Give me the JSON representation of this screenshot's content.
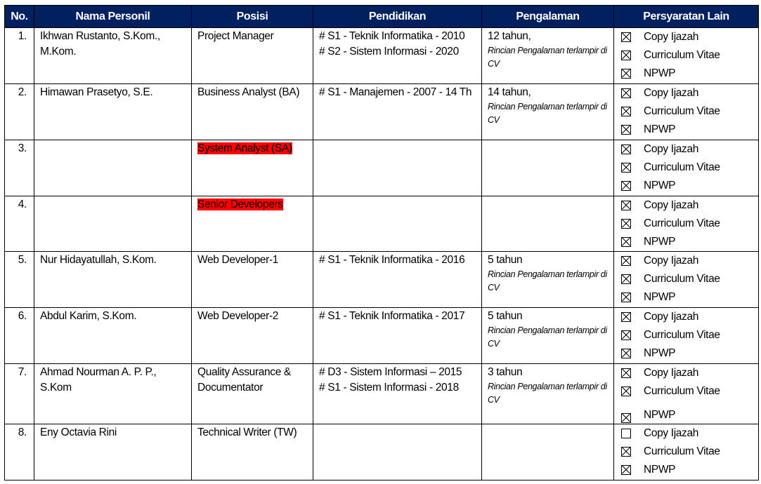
{
  "headers": [
    "No.",
    "Nama Personil",
    "Posisi",
    "Pendidikan",
    "Pengalaman",
    "Persyaratan Lain"
  ],
  "highlight_color": "#ff0000",
  "header_color": "#002060",
  "rows": [
    {
      "no": "1.",
      "name": "Ikhwan Rustanto, S.Kom., M.Kom.",
      "position": "Project Manager",
      "highlight": false,
      "education": [
        "# S1 - Teknik Informatika - 2010",
        "# S2 - Sistem Informasi - 2020"
      ],
      "experience": "12 tahun,",
      "experience_note": "Rincian Pengalaman terlampir di CV",
      "requirements": [
        {
          "label": "Copy Ijazah",
          "checked": true
        },
        {
          "label": "Curriculum Vitae",
          "checked": true
        },
        {
          "label": "NPWP",
          "checked": true
        }
      ]
    },
    {
      "no": "2.",
      "name": "Himawan Prasetyo, S.E.",
      "position": "Business Analyst (BA)",
      "highlight": false,
      "education": [
        "# S1 - Manajemen - 2007 - 14 Th"
      ],
      "experience": "14 tahun,",
      "experience_note": "Rincian Pengalaman terlampir di CV",
      "requirements": [
        {
          "label": "Copy Ijazah",
          "checked": true
        },
        {
          "label": "Curriculum Vitae",
          "checked": true
        },
        {
          "label": "NPWP",
          "checked": true
        }
      ]
    },
    {
      "no": "3.",
      "name": "",
      "position": "System Analyst (SA)",
      "highlight": true,
      "education": [],
      "experience": "",
      "experience_note": "",
      "requirements": [
        {
          "label": "Copy Ijazah",
          "checked": true
        },
        {
          "label": "Curriculum Vitae",
          "checked": true
        },
        {
          "label": "NPWP",
          "checked": true
        }
      ]
    },
    {
      "no": "4.",
      "name": "",
      "position": "Senior Developers",
      "highlight": true,
      "education": [],
      "experience": "",
      "experience_note": "",
      "requirements": [
        {
          "label": "Copy Ijazah",
          "checked": true
        },
        {
          "label": "Curriculum Vitae",
          "checked": true
        },
        {
          "label": "NPWP",
          "checked": true
        }
      ]
    },
    {
      "no": "5.",
      "name": "Nur Hidayatullah, S.Kom.",
      "position": "Web Developer-1",
      "highlight": false,
      "education": [
        "# S1 - Teknik Informatika - 2016"
      ],
      "experience": "5 tahun",
      "experience_note": "Rincian Pengalaman terlampir di CV",
      "requirements": [
        {
          "label": "Copy Ijazah",
          "checked": true
        },
        {
          "label": "Curriculum Vitae",
          "checked": true
        },
        {
          "label": "NPWP",
          "checked": true
        }
      ]
    },
    {
      "no": "6.",
      "name": "Abdul Karim, S.Kom.",
      "position": "Web Developer-2",
      "highlight": false,
      "education": [
        "# S1 - Teknik Informatika - 2017"
      ],
      "experience": "5 tahun",
      "experience_note": "Rincian Pengalaman terlampir di CV",
      "requirements": [
        {
          "label": "Copy Ijazah",
          "checked": true
        },
        {
          "label": "Curriculum Vitae",
          "checked": true
        },
        {
          "label": "NPWP",
          "checked": true
        }
      ]
    },
    {
      "no": "7.",
      "name": "Ahmad Nourman A. P. P., S.Kom",
      "position": "Quality Assurance & Documentator",
      "highlight": false,
      "education": [
        "# D3 - Sistem Informasi – 2015",
        "# S1 - Sistem Informasi - 2018"
      ],
      "experience": "3 tahun",
      "experience_note": "Rincian Pengalaman terlampir di CV",
      "requirements": [
        {
          "label": "Copy Ijazah",
          "checked": true
        },
        {
          "label": "Curriculum Vitae",
          "checked": true
        },
        {
          "label": "NPWP",
          "checked": true
        }
      ]
    },
    {
      "no": "8.",
      "name": "Eny Octavia Rini",
      "position": "Technical Writer (TW)",
      "highlight": false,
      "education": [],
      "experience": "",
      "experience_note": "",
      "requirements": [
        {
          "label": "Copy Ijazah",
          "checked": false
        },
        {
          "label": "Curriculum Vitae",
          "checked": true
        },
        {
          "label": "NPWP",
          "checked": true
        }
      ]
    }
  ]
}
